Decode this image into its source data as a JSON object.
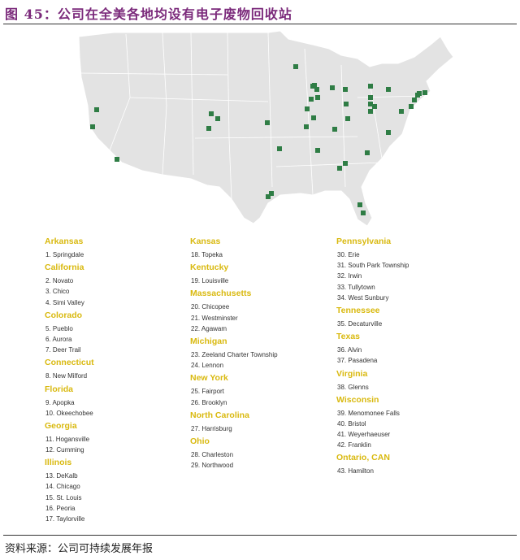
{
  "title": "图 45：公司在全美各地均设有电子废物回收站",
  "source": "资料来源：公司可持续发展年报",
  "colors": {
    "title": "#7b2a7b",
    "state_heading": "#d9b90f",
    "marker": "#2f7d45",
    "map_fill": "#e3e3e3"
  },
  "columns": [
    [
      {
        "state": "Arkansas",
        "sites": [
          "1.  Springdale"
        ]
      },
      {
        "state": "California",
        "sites": [
          "2.  Novato",
          "3.  Chico",
          "4.  Simi Valley"
        ]
      },
      {
        "state": "Colorado",
        "sites": [
          "5.  Pueblo",
          "6.  Aurora",
          "7.  Deer Trail"
        ]
      },
      {
        "state": "Connecticut",
        "sites": [
          "8.  New Milford"
        ]
      },
      {
        "state": "Florida",
        "sites": [
          "9.  Apopka",
          "10. Okeechobee"
        ]
      },
      {
        "state": "Georgia",
        "sites": [
          "11. Hogansville",
          "12. Cumming"
        ]
      },
      {
        "state": "Illinois",
        "sites": [
          "13. DeKalb",
          "14. Chicago",
          "15. St. Louis",
          "16. Peoria",
          "17. Taylorville"
        ]
      }
    ],
    [
      {
        "state": "Kansas",
        "sites": [
          "18. Topeka"
        ]
      },
      {
        "state": "Kentucky",
        "sites": [
          "19. Louisville"
        ]
      },
      {
        "state": "Massachusetts",
        "sites": [
          "20. Chicopee",
          "21. Westminster",
          "22. Agawam"
        ]
      },
      {
        "state": "Michigan",
        "sites": [
          "23. Zeeland Charter Township",
          "24. Lennon"
        ]
      },
      {
        "state": "New York",
        "sites": [
          "25. Fairport",
          "26. Brooklyn"
        ]
      },
      {
        "state": "North Carolina",
        "sites": [
          "27. Harrisburg"
        ]
      },
      {
        "state": "Ohio",
        "sites": [
          "28. Charleston",
          "29. Northwood"
        ]
      }
    ],
    [
      {
        "state": "Pennsylvania",
        "sites": [
          "30. Erie",
          "31. South Park Township",
          "32. Irwin",
          "33. Tullytown",
          "34. West Sunbury"
        ]
      },
      {
        "state": "Tennessee",
        "sites": [
          "35. Decaturville"
        ]
      },
      {
        "state": "Texas",
        "sites": [
          "36. Alvin",
          "37. Pasadena"
        ]
      },
      {
        "state": "Virginia",
        "sites": [
          "38. Glenns"
        ]
      },
      {
        "state": "Wisconsin",
        "sites": [
          "39. Menomonee Falls",
          "40. Bristol",
          "41. Weyerhaeuser",
          "42. Franklin"
        ]
      },
      {
        "state": "Ontario, CAN",
        "sites": [
          "43. Hamilton"
        ]
      }
    ]
  ]
}
